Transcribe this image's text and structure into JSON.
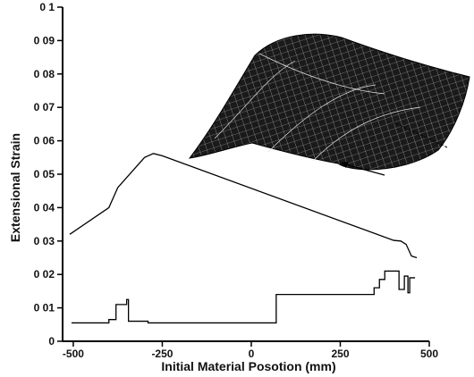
{
  "chart_data": {
    "type": "line",
    "title": "",
    "xlabel": "Initial Material Posotion (mm)",
    "ylabel": "Extensional Strain",
    "xlim": [
      -530,
      500
    ],
    "ylim": [
      0,
      0.1
    ],
    "x_ticks": [
      -500,
      -250,
      0,
      250,
      500
    ],
    "y_ticks": [
      0,
      0.01,
      0.02,
      0.03,
      0.04,
      0.05,
      0.06,
      0.07,
      0.08,
      0.09,
      0.1
    ],
    "x_tick_labels": [
      "-500",
      "-250",
      "0",
      "250",
      "500"
    ],
    "y_tick_labels": [
      "0",
      "0 01",
      "0 02",
      "0 03",
      "0 04",
      "0 05",
      "0 06",
      "0 07",
      "0 08",
      "0 09",
      "0 1"
    ],
    "grid": false,
    "legend": "none",
    "series": [
      {
        "points": [
          [
            -510,
            0.032
          ],
          [
            -400,
            0.04
          ],
          [
            -375,
            0.046
          ],
          [
            -300,
            0.055
          ],
          [
            -275,
            0.0562
          ],
          [
            -250,
            0.0555
          ],
          [
            400,
            0.0302
          ],
          [
            420,
            0.03
          ],
          [
            435,
            0.029
          ],
          [
            450,
            0.0255
          ],
          [
            465,
            0.025
          ]
        ]
      },
      {
        "points": [
          [
            -505,
            0.0055
          ],
          [
            -400,
            0.0055
          ],
          [
            -400,
            0.0065
          ],
          [
            -380,
            0.0065
          ],
          [
            -380,
            0.011
          ],
          [
            -350,
            0.011
          ],
          [
            -350,
            0.0125
          ],
          [
            -345,
            0.0125
          ],
          [
            -345,
            0.006
          ],
          [
            -290,
            0.006
          ],
          [
            -290,
            0.0055
          ],
          [
            70,
            0.0055
          ],
          [
            70,
            0.014
          ],
          [
            345,
            0.014
          ],
          [
            345,
            0.016
          ],
          [
            360,
            0.016
          ],
          [
            360,
            0.0185
          ],
          [
            375,
            0.0185
          ],
          [
            375,
            0.021
          ],
          [
            415,
            0.021
          ],
          [
            415,
            0.0155
          ],
          [
            430,
            0.0155
          ],
          [
            430,
            0.0195
          ],
          [
            440,
            0.0195
          ],
          [
            440,
            0.0145
          ],
          [
            445,
            0.0145
          ],
          [
            445,
            0.019
          ],
          [
            460,
            0.019
          ]
        ]
      }
    ]
  },
  "inset": {
    "type": "3d-mesh-surface",
    "arrows": 2
  }
}
